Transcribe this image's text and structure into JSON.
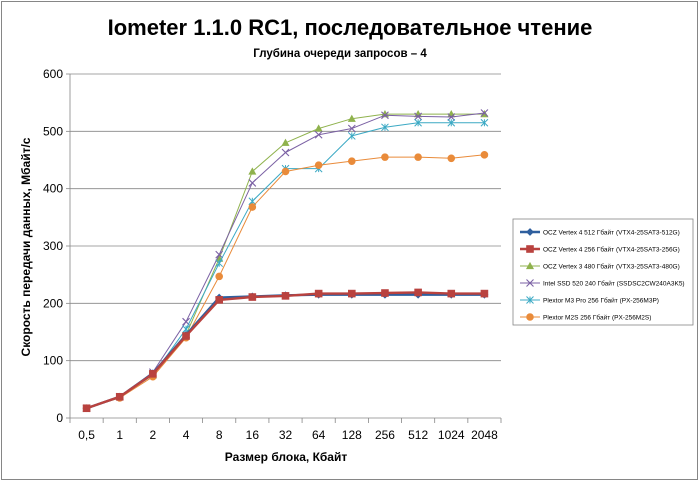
{
  "chart_data": {
    "type": "line",
    "title": "Iometer 1.1.0 RC1, последовательное чтение",
    "subtitle": "Глубина очереди запросов – 4",
    "xlabel": "Размер блока, Кбайт",
    "ylabel": "Скорость передачи данных, Мбайт/с",
    "categories": [
      "0,5",
      "1",
      "2",
      "4",
      "8",
      "16",
      "32",
      "64",
      "128",
      "256",
      "512",
      "1024",
      "2048"
    ],
    "ylim": [
      0,
      600
    ],
    "yticks": [
      0,
      100,
      200,
      300,
      400,
      500,
      600
    ],
    "grid": "horizontal",
    "legend_position": "right",
    "series": [
      {
        "name": "OCZ Vertex 4 512 Гбайт (VTX4-25SAT3-512G)",
        "color": "#2f5f9e",
        "marker": "diamond",
        "values": [
          17,
          37,
          78,
          145,
          210,
          212,
          214,
          215,
          215,
          215,
          215,
          215,
          215
        ]
      },
      {
        "name": "OCZ Vertex 4 256 Гбайт (VTX4-25SAT3-256G)",
        "color": "#b9423f",
        "marker": "square",
        "values": [
          17,
          37,
          77,
          143,
          206,
          211,
          213,
          217,
          217,
          218,
          219,
          217,
          217
        ]
      },
      {
        "name": "OCZ Vertex 3 480 Гбайт (VTX3-25SAT3-480G)",
        "color": "#8fb24d",
        "marker": "triangle",
        "values": [
          17,
          37,
          75,
          145,
          278,
          430,
          480,
          505,
          522,
          530,
          530,
          530,
          530
        ]
      },
      {
        "name": "Intel SSD 520 240 Гбайт (SSDSC2CW240A3K5)",
        "color": "#7b61a4",
        "marker": "x",
        "values": [
          17,
          37,
          80,
          168,
          285,
          410,
          463,
          494,
          505,
          528,
          526,
          525,
          532
        ]
      },
      {
        "name": "Plextor M3 Pro 256 Гбайт (PX-256M3P)",
        "color": "#3ba9c4",
        "marker": "asterisk",
        "values": [
          17,
          37,
          75,
          155,
          270,
          378,
          435,
          435,
          492,
          507,
          515,
          515,
          515
        ]
      },
      {
        "name": "Plextor M2S 256 Гбайт (PX-256M2S)",
        "color": "#e98b3a",
        "marker": "circle",
        "values": [
          17,
          35,
          72,
          140,
          247,
          368,
          430,
          441,
          448,
          455,
          455,
          453,
          459
        ]
      }
    ]
  }
}
